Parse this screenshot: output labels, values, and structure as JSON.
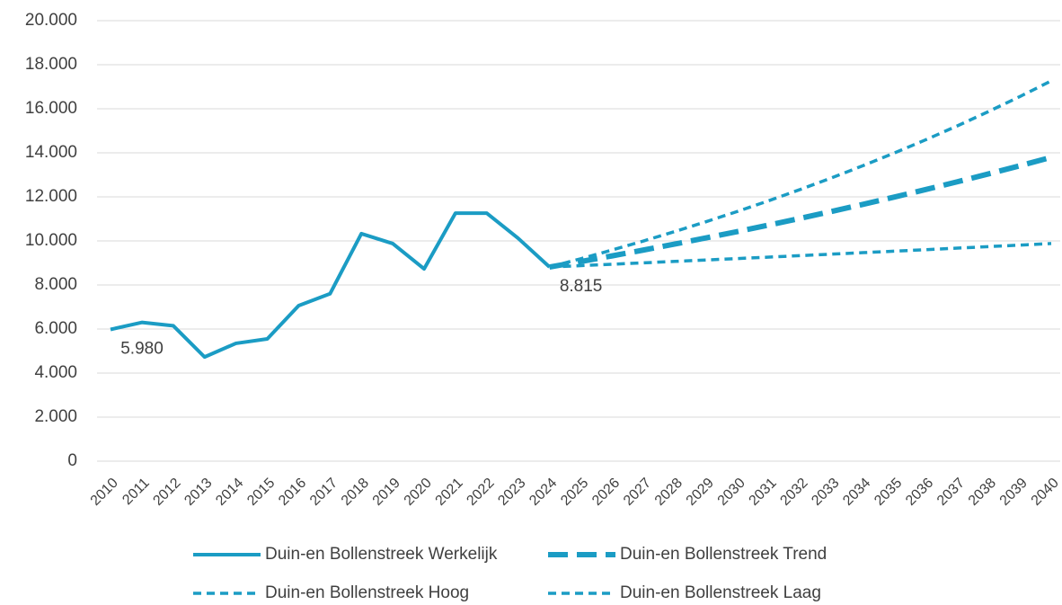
{
  "chart_data": {
    "type": "line",
    "categories": [
      "2010",
      "2011",
      "2012",
      "2013",
      "2014",
      "2015",
      "2016",
      "2017",
      "2018",
      "2019",
      "2020",
      "2021",
      "2022",
      "2023",
      "2024",
      "2025",
      "2026",
      "2027",
      "2028",
      "2029",
      "2030",
      "2031",
      "2032",
      "2033",
      "2034",
      "2035",
      "2036",
      "2037",
      "2038",
      "2039",
      "2040"
    ],
    "series": [
      {
        "name": "Duin-en Bollenstreek Werkelijk",
        "color": "#1b9cc4",
        "dash": "solid",
        "values": [
          5980,
          6300,
          6150,
          4730,
          5350,
          5550,
          7060,
          7600,
          10330,
          9880,
          8730,
          11260,
          11260,
          10120,
          8815,
          null,
          null,
          null,
          null,
          null,
          null,
          null,
          null,
          null,
          null,
          null,
          null,
          null,
          null,
          null,
          null
        ],
        "value_labels": [
          "5.980",
          null,
          null,
          null,
          null,
          null,
          null,
          null,
          null,
          null,
          null,
          null,
          null,
          null,
          "8.815",
          null,
          null,
          null,
          null,
          null,
          null,
          null,
          null,
          null,
          null,
          null,
          null,
          null,
          null,
          null,
          null
        ]
      },
      {
        "name": "Duin-en Bollenstreek Trend",
        "color": "#1b9cc4",
        "dash": "long-dash",
        "values": [
          null,
          null,
          null,
          null,
          null,
          null,
          null,
          null,
          null,
          null,
          null,
          null,
          null,
          null,
          8815,
          9065,
          9322,
          9587,
          9859,
          10139,
          10427,
          10723,
          11027,
          11340,
          11662,
          11993,
          12333,
          12683,
          13043,
          13413,
          13794
        ]
      },
      {
        "name": "Duin-en Bollenstreek Hoog",
        "color": "#1b9cc4",
        "dash": "dash",
        "values": [
          null,
          null,
          null,
          null,
          null,
          null,
          null,
          null,
          null,
          null,
          null,
          null,
          null,
          null,
          8815,
          9193,
          9588,
          9999,
          10428,
          10876,
          11342,
          11829,
          12337,
          12866,
          13418,
          13994,
          14594,
          15220,
          15874,
          16555,
          17266
        ]
      },
      {
        "name": "Duin-en Bollenstreek Laag",
        "color": "#1b9cc4",
        "dash": "dash",
        "values": [
          null,
          null,
          null,
          null,
          null,
          null,
          null,
          null,
          null,
          null,
          null,
          null,
          null,
          null,
          8815,
          8878,
          8942,
          9006,
          9070,
          9135,
          9200,
          9266,
          9333,
          9400,
          9467,
          9535,
          9603,
          9672,
          9741,
          9811,
          9881
        ]
      }
    ],
    "ylim": [
      0,
      20000
    ],
    "yticks": [
      0,
      {
        "value": 2000,
        "label": "2.000"
      },
      {
        "value": 4000,
        "label": "4.000"
      },
      {
        "value": 6000,
        "label": "6.000"
      },
      {
        "value": 8000,
        "label": "8.000"
      },
      {
        "value": 10000,
        "label": "10.000"
      },
      {
        "value": 12000,
        "label": "12.000"
      },
      {
        "value": 14000,
        "label": "14.000"
      },
      {
        "value": 16000,
        "label": "16.000"
      },
      {
        "value": 18000,
        "label": "18.000"
      },
      {
        "value": 20000,
        "label": "20.000"
      }
    ],
    "grid": true,
    "legend": "bottom"
  }
}
